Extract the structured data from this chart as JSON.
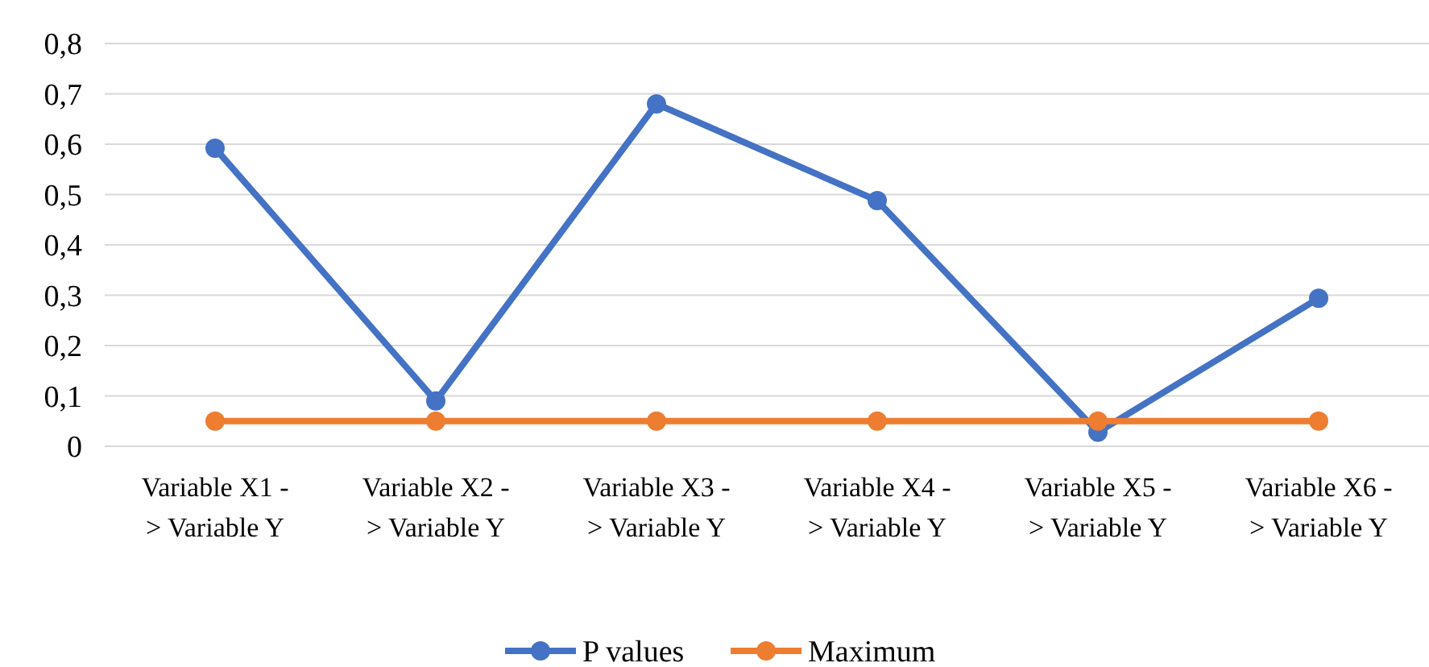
{
  "chart_data": {
    "type": "line",
    "categories": [
      "Variable X1 -> Variable Y",
      "Variable X2 -> Variable Y",
      "Variable X3 -> Variable Y",
      "Variable X4 -> Variable Y",
      "Variable X5 -> Variable Y",
      "Variable X6 -> Variable Y"
    ],
    "series": [
      {
        "name": "P values",
        "color": "#4472c4",
        "values": [
          0.592,
          0.09,
          0.68,
          0.488,
          0.028,
          0.294
        ]
      },
      {
        "name": "Maximum",
        "color": "#ed7d31",
        "values": [
          0.05,
          0.05,
          0.05,
          0.05,
          0.05,
          0.05
        ]
      }
    ],
    "ylim": [
      0,
      0.8
    ],
    "yticks": [
      {
        "value": 0,
        "label": "0"
      },
      {
        "value": 0.1,
        "label": "0,1"
      },
      {
        "value": 0.2,
        "label": "0,2"
      },
      {
        "value": 0.3,
        "label": "0,3"
      },
      {
        "value": 0.4,
        "label": "0,4"
      },
      {
        "value": 0.5,
        "label": "0,5"
      },
      {
        "value": 0.6,
        "label": "0,6"
      },
      {
        "value": 0.7,
        "label": "0,7"
      },
      {
        "value": 0.8,
        "label": "0,8"
      }
    ],
    "grid": "y",
    "legend": "bottom",
    "marker": "circle",
    "line_style": "solid"
  }
}
